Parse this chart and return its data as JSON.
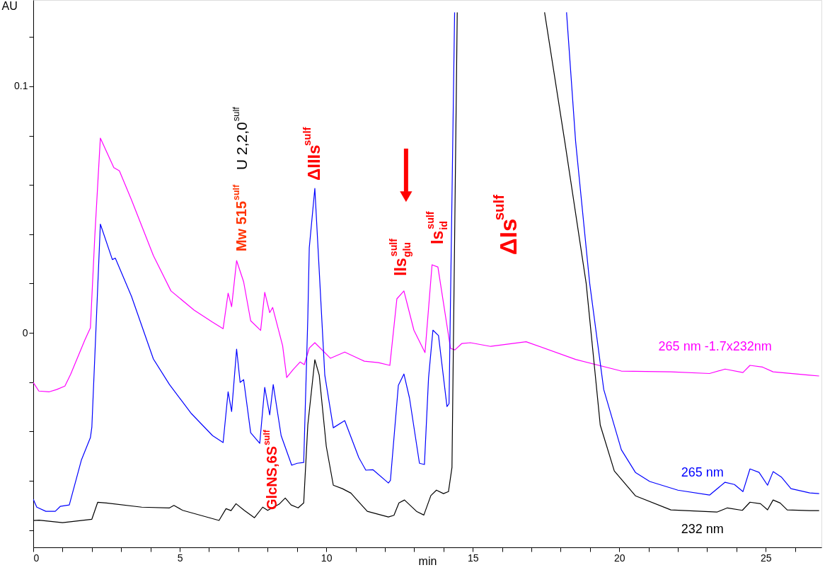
{
  "chart_data": {
    "type": "line",
    "xlabel": "min",
    "ylabel": "AU",
    "xlim": [
      0,
      26.9
    ],
    "ylim": [
      -0.087,
      0.135
    ],
    "xticks": [
      0,
      {
        "value": 1,
        "label": null
      },
      {
        "value": 2,
        "label": null
      },
      {
        "value": 3,
        "label": null
      },
      {
        "value": 4,
        "label": null
      },
      5,
      {
        "value": 6,
        "label": null
      },
      {
        "value": 7,
        "label": null
      },
      {
        "value": 8,
        "label": null
      },
      {
        "value": 9,
        "label": null
      },
      10,
      {
        "value": 11,
        "label": null
      },
      {
        "value": 12,
        "label": null
      },
      {
        "value": 13,
        "label": null
      },
      {
        "value": 14,
        "label": null
      },
      15,
      {
        "value": 16,
        "label": null
      },
      {
        "value": 17,
        "label": null
      },
      {
        "value": 18,
        "label": null
      },
      {
        "value": 19,
        "label": null
      },
      20,
      {
        "value": 21,
        "label": null
      },
      {
        "value": 22,
        "label": null
      },
      {
        "value": 23,
        "label": null
      },
      {
        "value": 24,
        "label": null
      },
      25,
      {
        "value": 26,
        "label": null
      }
    ],
    "yticks": [
      {
        "value": -0.08,
        "label": null
      },
      {
        "value": -0.06,
        "label": null
      },
      {
        "value": -0.04,
        "label": null
      },
      {
        "value": -0.02,
        "label": null
      },
      0,
      {
        "value": 0.02,
        "label": null
      },
      {
        "value": 0.04,
        "label": null
      },
      {
        "value": 0.06,
        "label": null
      },
      {
        "value": 0.08,
        "label": null
      },
      0.1,
      {
        "value": 0.12,
        "label": null
      }
    ],
    "grid": false,
    "marker": "none",
    "line_style": "solid",
    "series": [
      {
        "name": "265 nm -1.7x232nm",
        "color": "#ff00ff",
        "x": [
          0,
          0.19,
          0.55,
          0.8,
          1.08,
          1.28,
          1.76,
          1.95,
          2.1,
          2.29,
          2.75,
          2.94,
          3.35,
          4.1,
          4.7,
          5.49,
          6.12,
          6.48,
          6.65,
          6.77,
          6.94,
          7.18,
          7.42,
          7.76,
          7.9,
          8.07,
          8.17,
          8.51,
          8.65,
          8.87,
          9.11,
          9.25,
          9.42,
          9.61,
          10.14,
          10.63,
          11.3,
          11.78,
          12.17,
          12.41,
          12.65,
          12.99,
          13.37,
          13.61,
          13.81,
          14.24,
          14.39,
          14.63,
          14.92,
          15.61,
          16.82,
          18.51,
          20.07,
          21.76,
          23.08,
          23.61,
          24.22,
          24.46,
          24.89,
          25.25,
          26.5,
          26.82
        ],
        "values": [
          -0.0201,
          -0.0236,
          -0.0239,
          -0.023,
          -0.0216,
          -0.0167,
          -0.0029,
          0.002,
          0.0391,
          0.079,
          0.067,
          0.0657,
          0.054,
          0.0313,
          0.017,
          0.0092,
          0.0043,
          0.0017,
          0.0161,
          0.0106,
          0.0293,
          0.0207,
          0.0049,
          0.001,
          0.0164,
          0.0082,
          0.0103,
          -0.0052,
          -0.0181,
          -0.0149,
          -0.0118,
          -0.0129,
          -0.0062,
          -0.004,
          -0.0103,
          -0.0078,
          -0.0115,
          -0.0121,
          -0.0132,
          0.0138,
          0.017,
          0.0011,
          -0.008,
          0.0276,
          0.0267,
          -0.0063,
          -0.0069,
          -0.0043,
          -0.004,
          -0.0055,
          -0.0036,
          -0.0108,
          -0.0155,
          -0.0158,
          -0.0165,
          -0.0147,
          -0.0161,
          -0.0132,
          -0.0139,
          -0.0158,
          -0.0172,
          -0.0175
        ]
      },
      {
        "name": "265 nm",
        "color": "#0000ff",
        "x": [
          0,
          0.12,
          0.43,
          0.75,
          0.92,
          1.23,
          1.64,
          1.95,
          2.0,
          2.29,
          2.7,
          2.8,
          3.35,
          4.1,
          4.65,
          5.4,
          6.12,
          6.48,
          6.65,
          6.77,
          6.94,
          7.06,
          7.18,
          7.42,
          7.73,
          7.9,
          8.07,
          8.19,
          8.46,
          8.82,
          9.01,
          9.23,
          9.37,
          9.42,
          9.61,
          9.95,
          10.24,
          10.63,
          11.11,
          11.35,
          11.59,
          12.12,
          12.19,
          12.46,
          12.65,
          12.84,
          13.18,
          13.35,
          13.49,
          13.64,
          13.83,
          14.12,
          14.19,
          14.38,
          16.0,
          18.2,
          18.51,
          18.99,
          19.47,
          20.07,
          20.55,
          21.04,
          22.0,
          23.08,
          23.61,
          23.93,
          24.22,
          24.46,
          24.77,
          25.06,
          25.25,
          25.54,
          25.86,
          26.5,
          26.82
        ],
        "values": [
          -0.0675,
          -0.0707,
          -0.0724,
          -0.0724,
          -0.0704,
          -0.0698,
          -0.0517,
          -0.0425,
          -0.0382,
          0.0441,
          0.0297,
          0.0303,
          0.0149,
          -0.0106,
          -0.021,
          -0.0328,
          -0.0417,
          -0.0445,
          -0.0239,
          -0.0319,
          -0.0066,
          -0.0201,
          -0.019,
          -0.0405,
          -0.0448,
          -0.0221,
          -0.0333,
          -0.021,
          -0.0417,
          -0.0537,
          -0.0529,
          -0.0526,
          0.006,
          0.0345,
          0.0586,
          -0.0172,
          -0.0385,
          -0.0356,
          -0.0506,
          -0.0557,
          -0.0555,
          -0.0609,
          -0.0598,
          -0.0213,
          -0.0167,
          -0.0264,
          -0.0529,
          -0.0534,
          -0.0184,
          0.0011,
          -0.0011,
          -0.0299,
          -0.0287,
          0.13,
          null,
          0.13,
          0.0776,
          0.0201,
          -0.023,
          -0.0474,
          -0.0566,
          -0.0603,
          -0.0638,
          -0.0658,
          -0.0606,
          -0.0615,
          -0.0644,
          -0.0552,
          -0.0566,
          -0.0618,
          -0.0563,
          -0.0586,
          -0.0632,
          -0.0649,
          -0.0652
        ]
      },
      {
        "name": "232 nm",
        "color": "#000000",
        "x": [
          0,
          0.2,
          1.0,
          2.0,
          2.2,
          2.5,
          3.7,
          4.65,
          4.8,
          5.1,
          6.34,
          6.58,
          6.75,
          6.92,
          7.2,
          7.55,
          7.83,
          8.0,
          8.39,
          8.6,
          8.8,
          9.04,
          9.23,
          9.37,
          9.61,
          9.76,
          10.0,
          10.24,
          10.55,
          10.84,
          11.4,
          12.12,
          12.31,
          12.48,
          12.67,
          13.08,
          13.33,
          13.57,
          13.76,
          14.0,
          14.17,
          14.29,
          14.47,
          16.0,
          17.45,
          18.14,
          18.87,
          19.35,
          19.83,
          20.55,
          21.76,
          23.33,
          23.69,
          24.2,
          24.46,
          24.82,
          25.06,
          25.25,
          25.49,
          25.73,
          26.5,
          26.82
        ],
        "values": [
          -0.0761,
          -0.076,
          -0.077,
          -0.0756,
          -0.0687,
          -0.069,
          -0.0707,
          -0.071,
          -0.07,
          -0.072,
          -0.0761,
          -0.0713,
          -0.0721,
          -0.0693,
          -0.072,
          -0.075,
          -0.0707,
          -0.072,
          -0.0695,
          -0.067,
          -0.0698,
          -0.071,
          -0.069,
          -0.0374,
          -0.0109,
          -0.0172,
          -0.046,
          -0.0618,
          -0.0632,
          -0.065,
          -0.0724,
          -0.0747,
          -0.074,
          -0.069,
          -0.0678,
          -0.0724,
          -0.0739,
          -0.066,
          -0.0638,
          -0.0652,
          -0.0644,
          -0.0546,
          0.13,
          null,
          0.13,
          0.0776,
          0.0201,
          -0.0374,
          -0.056,
          -0.0661,
          -0.0718,
          -0.0727,
          -0.071,
          -0.072,
          -0.0687,
          -0.0693,
          -0.0718,
          -0.0678,
          -0.069,
          -0.0718,
          -0.0721,
          -0.0721
        ]
      }
    ],
    "annotations": [
      {
        "text": "Mw 515$^{sulf}$",
        "x": 6.94,
        "y": 0.0293
      },
      "U 2,2,0$^{sulf}$",
      {
        "text": "ΔIIIs$^{sulf}$",
        "x": 9.61,
        "y": 0.0586
      },
      {
        "text": "IIs$_{glu}$$^{sulf}$",
        "x": 12.65,
        "y": 0.017
      },
      {
        "text": "Is$_{id}$$^{sulf}$",
        "x": 13.61,
        "y": 0.0276
      },
      "ΔIs$^{sulf}$",
      {
        "text": "GlcNS,6S$^{sulf}$",
        "x": 8.17,
        "y": -0.0718
      }
    ]
  }
}
